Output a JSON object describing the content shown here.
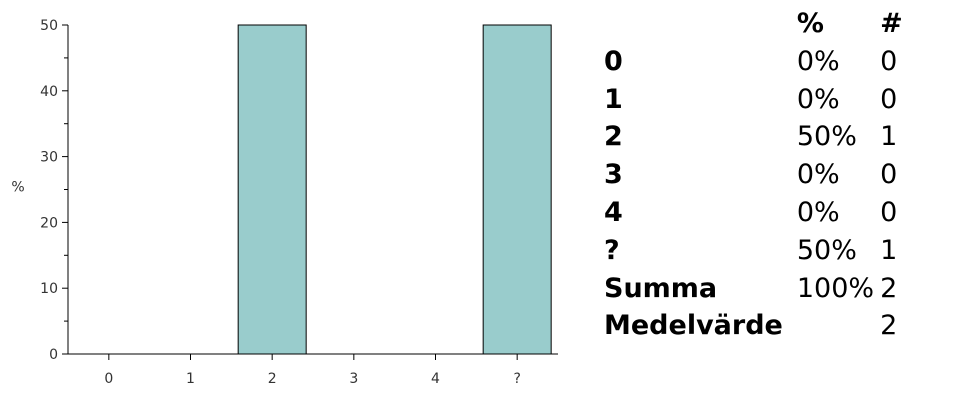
{
  "chart_data": {
    "type": "bar",
    "categories": [
      "0",
      "1",
      "2",
      "3",
      "4",
      "?"
    ],
    "values": [
      0,
      0,
      50,
      0,
      0,
      50
    ],
    "title": "",
    "xlabel": "",
    "ylabel": "%",
    "ylim": [
      0,
      50
    ],
    "yticks": [
      0,
      10,
      20,
      30,
      40,
      50
    ],
    "bar_color": "#99cccc",
    "grid": false
  },
  "table": {
    "headers": {
      "pct": "%",
      "count": "#"
    },
    "rows": [
      {
        "label": "0",
        "pct": "0%",
        "count": "0"
      },
      {
        "label": "1",
        "pct": "0%",
        "count": "0"
      },
      {
        "label": "2",
        "pct": "50%",
        "count": "1"
      },
      {
        "label": "3",
        "pct": "0%",
        "count": "0"
      },
      {
        "label": "4",
        "pct": "0%",
        "count": "0"
      },
      {
        "label": "?",
        "pct": "50%",
        "count": "1"
      }
    ],
    "summary": [
      {
        "label": "Summa",
        "pct": "100%",
        "count": "2"
      },
      {
        "label": "Medelvärde",
        "pct": "",
        "count": "2"
      }
    ]
  }
}
